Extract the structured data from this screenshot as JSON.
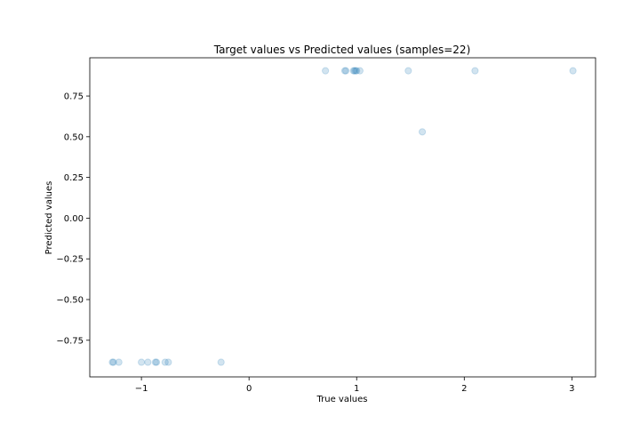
{
  "chart_data": {
    "type": "scatter",
    "title": "Target values vs Predicted values (samples=22)",
    "xlabel": "True values",
    "ylabel": "Predicted values",
    "xlim": [
      -1.48,
      3.22
    ],
    "ylim": [
      -0.975,
      0.985
    ],
    "xticks": [
      -1,
      0,
      1,
      2,
      3
    ],
    "xtick_labels": [
      "−1",
      "0",
      "1",
      "2",
      "3"
    ],
    "yticks": [
      -0.75,
      -0.5,
      -0.25,
      0.0,
      0.25,
      0.5,
      0.75
    ],
    "ytick_labels": [
      "−0.75",
      "−0.50",
      "−0.25",
      "0.00",
      "0.25",
      "0.50",
      "0.75"
    ],
    "grid": false,
    "marker_color": "#1f77b4",
    "marker_alpha": 0.2,
    "series": [
      {
        "points": [
          {
            "x": -1.27,
            "y": -0.885
          },
          {
            "x": -1.26,
            "y": -0.885
          },
          {
            "x": -1.21,
            "y": -0.885
          },
          {
            "x": -1.0,
            "y": -0.885
          },
          {
            "x": -0.94,
            "y": -0.885
          },
          {
            "x": -0.87,
            "y": -0.885
          },
          {
            "x": -0.86,
            "y": -0.885
          },
          {
            "x": -0.78,
            "y": -0.885
          },
          {
            "x": -0.75,
            "y": -0.885
          },
          {
            "x": -0.26,
            "y": -0.885
          },
          {
            "x": 0.71,
            "y": 0.905
          },
          {
            "x": 0.89,
            "y": 0.905
          },
          {
            "x": 0.9,
            "y": 0.905
          },
          {
            "x": 0.97,
            "y": 0.905
          },
          {
            "x": 0.98,
            "y": 0.905
          },
          {
            "x": 0.99,
            "y": 0.905
          },
          {
            "x": 1.0,
            "y": 0.905
          },
          {
            "x": 1.03,
            "y": 0.905
          },
          {
            "x": 1.48,
            "y": 0.905
          },
          {
            "x": 1.61,
            "y": 0.53
          },
          {
            "x": 2.1,
            "y": 0.905
          },
          {
            "x": 3.01,
            "y": 0.905
          }
        ]
      }
    ]
  }
}
